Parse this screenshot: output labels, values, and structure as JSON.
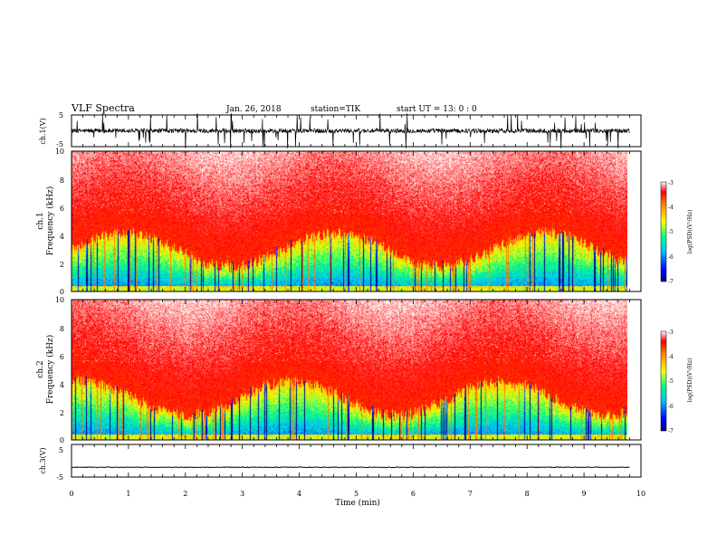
{
  "header": {
    "title": "VLF Spectra",
    "date": "Jan. 26, 2018",
    "station": "station=TIK",
    "start": "start UT =  13: 0 : 0"
  },
  "chart_data": [
    {
      "type": "line",
      "name": "waveform-ch1",
      "ylabel": "ch.1(V)",
      "ylim": [
        -5,
        5
      ],
      "yticks": [
        5,
        -5
      ],
      "xlim": [
        0,
        10
      ],
      "description_values": {
        "baseline": 0,
        "typical_range": [
          -1.2,
          1.2
        ],
        "spikes_to_limit": true
      }
    },
    {
      "type": "heatmap",
      "name": "spectrogram-ch1",
      "ylabel": "ch.1\nFrequency (kHz)",
      "ylim": [
        0,
        10
      ],
      "yticks": [
        0,
        2,
        4,
        6,
        8,
        10
      ],
      "xlim": [
        0,
        9.8
      ],
      "colorbar": {
        "label": "log(PSD)(V²/Hz)",
        "range": [
          -7,
          -3
        ],
        "ticks": [
          -3,
          -4,
          -5,
          -6,
          -7
        ]
      }
    },
    {
      "type": "heatmap",
      "name": "spectrogram-ch2",
      "ylabel": "ch.2\nFrequency (kHz)",
      "ylim": [
        0,
        10
      ],
      "yticks": [
        0,
        2,
        4,
        6,
        8,
        10
      ],
      "xlim": [
        0,
        9.8
      ],
      "colorbar": {
        "label": "log(PSD)(V²/Hz)",
        "range": [
          -7,
          -3
        ],
        "ticks": [
          -3,
          -4,
          -5,
          -6,
          -7
        ]
      }
    },
    {
      "type": "line",
      "name": "waveform-ch3",
      "ylabel": "ch.3(V)",
      "ylim": [
        -5,
        5
      ],
      "yticks": [
        5,
        -5
      ],
      "xlim": [
        0,
        10
      ],
      "description_values": {
        "baseline": -2,
        "typical_range": [
          -2.1,
          -1.9
        ]
      }
    }
  ],
  "xaxis": {
    "label": "Time (min)",
    "ticks": [
      "0",
      "1",
      "2",
      "3",
      "4",
      "5",
      "6",
      "7",
      "8",
      "9",
      "10"
    ],
    "range": [
      0,
      10
    ]
  },
  "colorbar_labels": {
    "label": "log(PSD)(V²/Hz)",
    "t3": "-3",
    "t4": "-4",
    "t5": "-5",
    "t6": "-6",
    "t7": "-7"
  },
  "panel_labels": {
    "w1": "ch.1(V)",
    "s1a": "ch.1",
    "s1b": "Frequency (kHz)",
    "s2a": "ch.2",
    "s2b": "Frequency (kHz)",
    "w3": "ch.3(V)"
  },
  "tick_labels": {
    "w5": "5",
    "wm5": "-5",
    "f0": "0",
    "f2": "2",
    "f4": "4",
    "f6": "6",
    "f8": "8",
    "f10": "10"
  }
}
